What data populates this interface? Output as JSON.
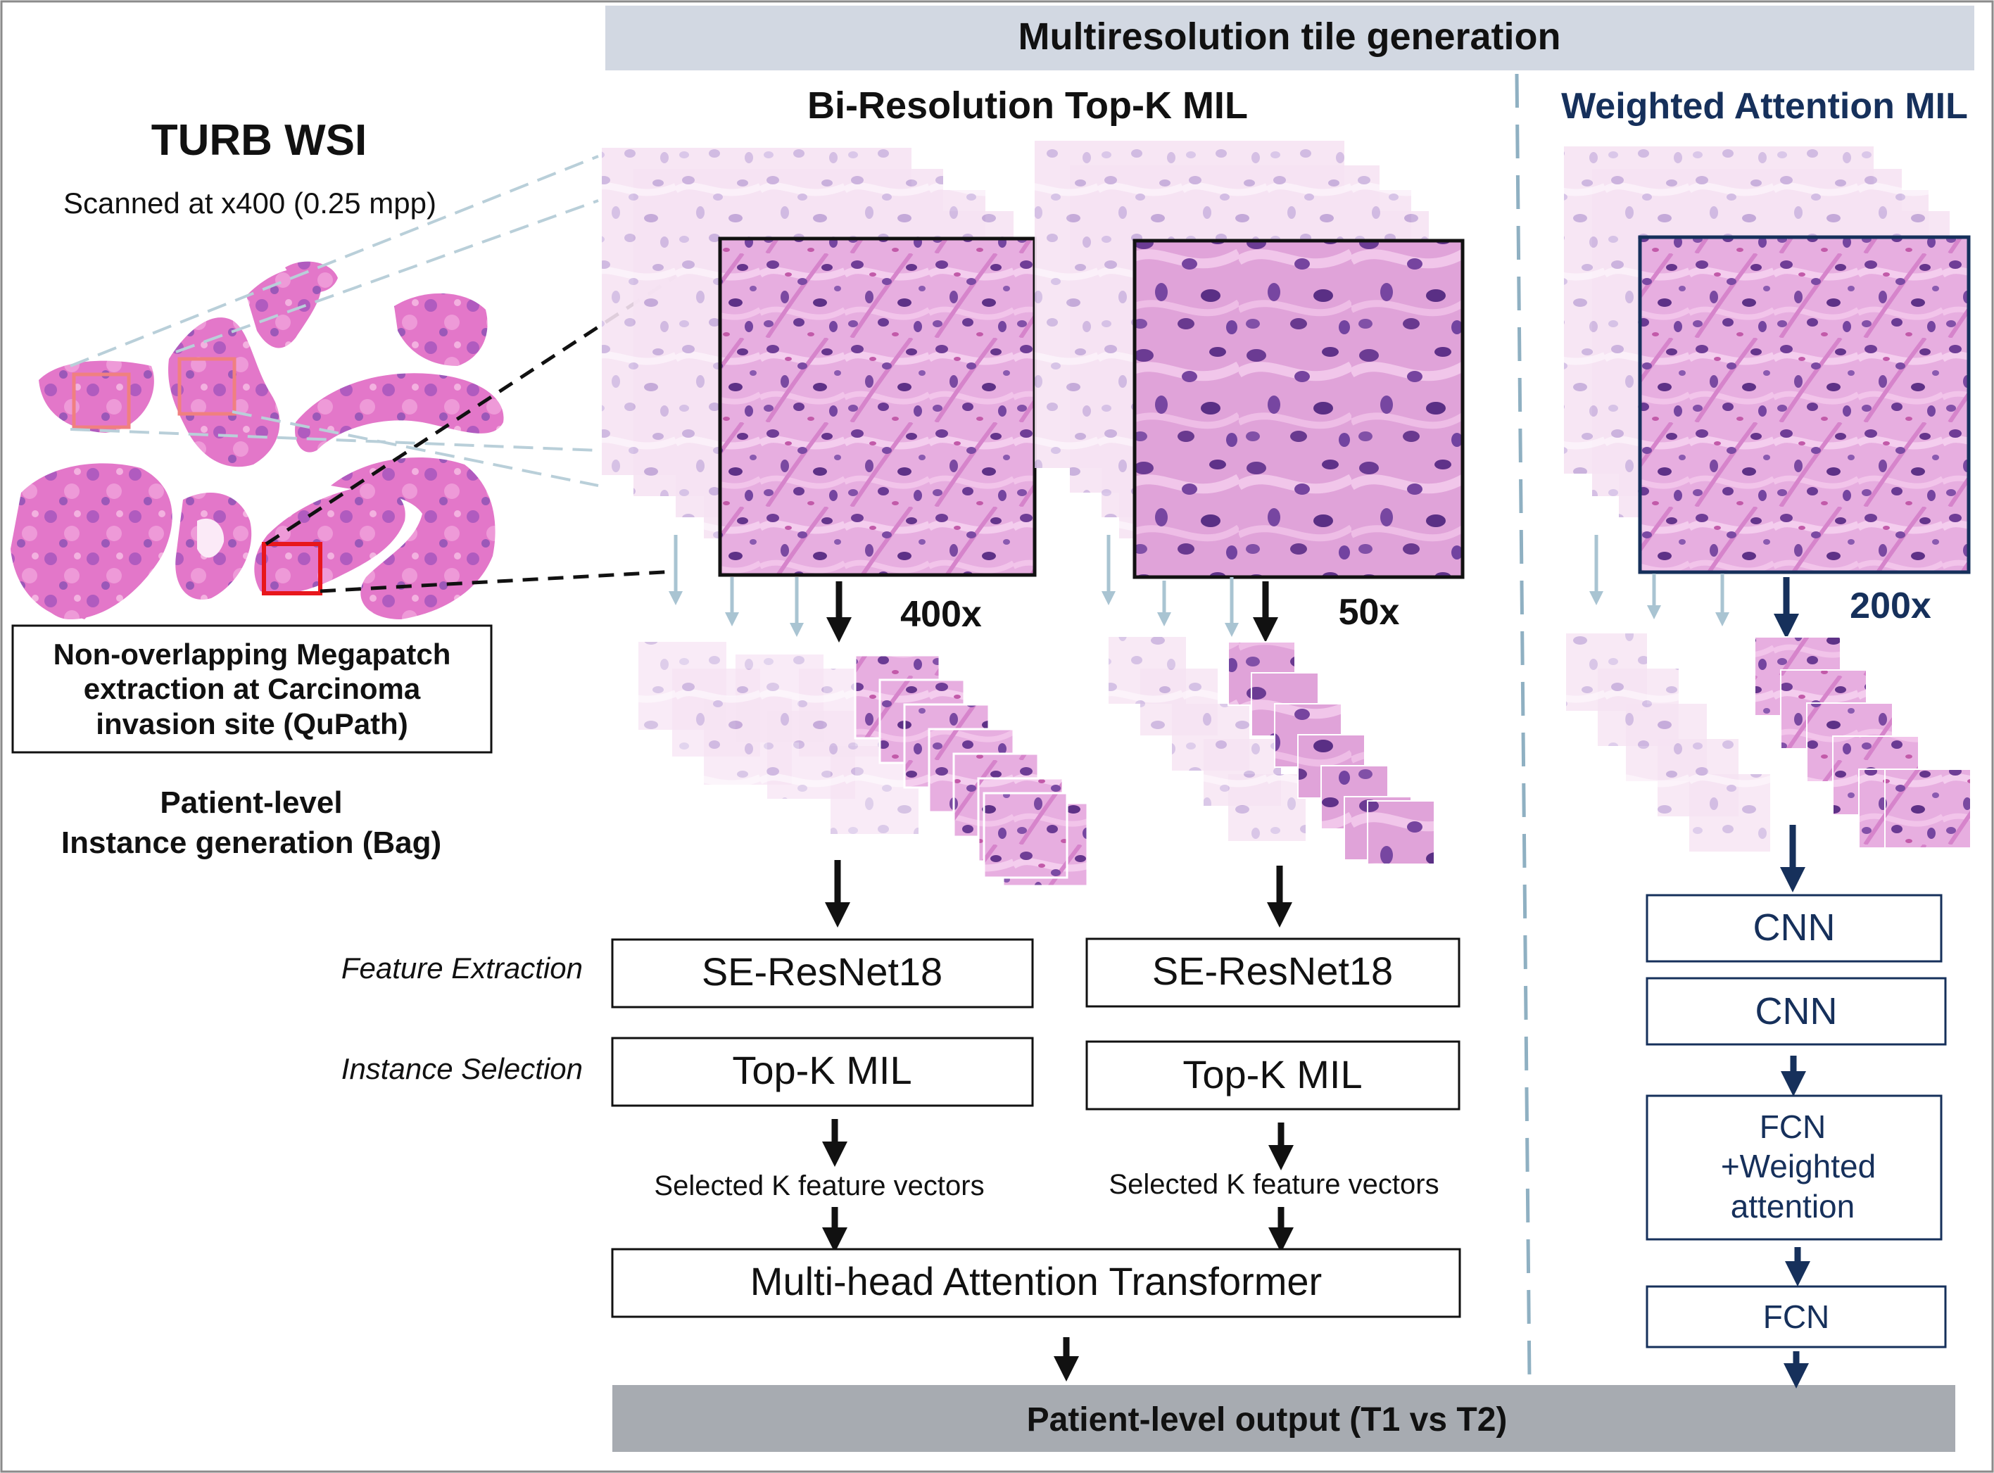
{
  "top_banner": "Multiresolution tile generation",
  "bottom_banner": "Patient-level output (T1 vs T2)",
  "left": {
    "title": "TURB WSI",
    "scan_note": "Scanned at x400 (0.25 mpp)",
    "megapatch_box": [
      "Non-overlapping Megapatch",
      "extraction at Carcinoma",
      "invasion site (QuPath)"
    ],
    "bag_caption": [
      "Patient-level",
      "Instance generation (Bag)"
    ]
  },
  "biresolution": {
    "title": "Bi-Resolution Top-K MIL",
    "mag_a": "400x",
    "mag_b": "50x",
    "row_feature": "Feature Extraction",
    "row_selection": "Instance Selection",
    "backbone_a": "SE-ResNet18",
    "backbone_b": "SE-ResNet18",
    "topk_a": "Top-K MIL",
    "topk_b": "Top-K MIL",
    "selected_a": "Selected K feature vectors",
    "selected_b": "Selected K feature vectors",
    "transformer": "Multi-head Attention Transformer"
  },
  "weighted": {
    "title": "Weighted Attention MIL",
    "mag": "200x",
    "cnn_1": "CNN",
    "cnn_2": "CNN",
    "fcn_attention": [
      "FCN",
      "+Weighted",
      "attention"
    ],
    "fcn": "FCN"
  },
  "colors": {
    "banner_top": "#d2d8e2",
    "banner_bottom": "#a7abb1",
    "weighted_blue": "#16305b",
    "tissue_pink": "#c867b0",
    "tissue_purple": "#6f3d96",
    "roi_red": "#e8171c",
    "divider": "#8fb0c2"
  }
}
